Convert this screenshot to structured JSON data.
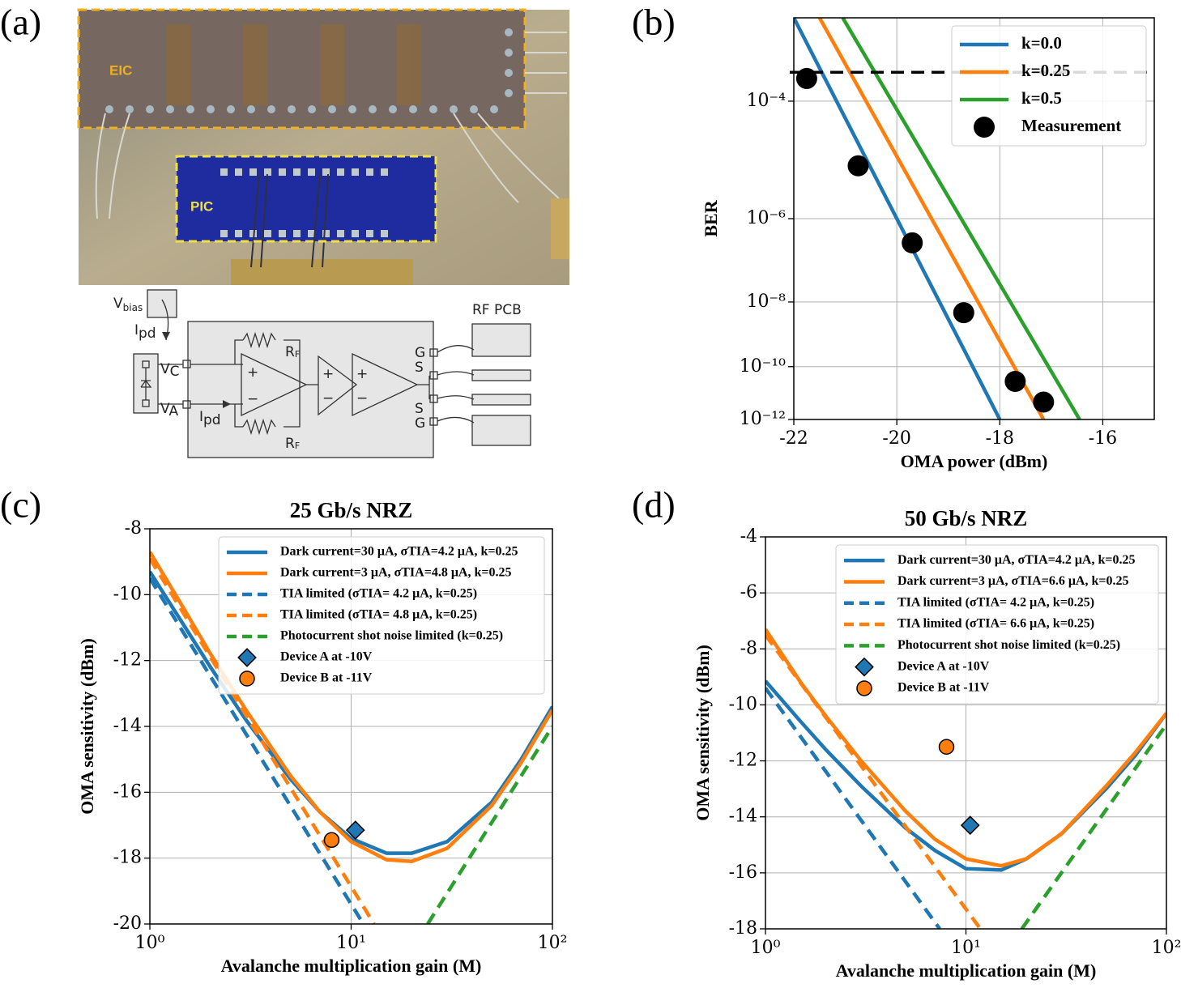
{
  "panel_a": {
    "label": "(a)",
    "photo": {
      "eic": "EIC",
      "pic": "PIC"
    },
    "schematic": {
      "v_bias": [
        "V",
        "bias"
      ],
      "i_pd_top": [
        "I",
        "pd"
      ],
      "v_c": [
        "V",
        "C"
      ],
      "v_a": [
        "V",
        "A"
      ],
      "i_pd_bottom": [
        "I",
        "pd"
      ],
      "r_f_top": [
        "R",
        "F"
      ],
      "r_f_bottom": [
        "R",
        "F"
      ],
      "amp_signs": [
        "+",
        "−"
      ],
      "pins": [
        "G",
        "S",
        "S",
        "G"
      ],
      "rf_pcb": "RF PCB"
    }
  },
  "chart_data": [
    {
      "type": "line",
      "panel_label": "(b)",
      "xlabel": "OMA power (dBm)",
      "ylabel": "BER",
      "xlim": [
        -22,
        -15
      ],
      "xticks": [
        -22,
        -20,
        -18,
        -16
      ],
      "ylim": [
        1e-12,
        0.001
      ],
      "yscale": "double-log",
      "yticks": [
        {
          "value": 1e-12,
          "label": "10⁻¹²"
        },
        {
          "value": 1e-10,
          "label": "10⁻¹⁰"
        },
        {
          "value": 1e-08,
          "label": "10⁻⁸"
        },
        {
          "value": 1e-06,
          "label": "10⁻⁶"
        },
        {
          "value": 0.0001,
          "label": "10⁻⁴"
        }
      ],
      "grid": true,
      "legend": "upper right",
      "hline": 0.00024,
      "series": [
        {
          "name": "k=0.0",
          "color": "#1f77b4",
          "style": "solid",
          "x": [
            -22,
            -18
          ],
          "values": [
            0.001,
            1e-12
          ]
        },
        {
          "name": "k=0.25",
          "color": "#ff7f0e",
          "style": "solid",
          "x": [
            -21.5,
            -17.15
          ],
          "values": [
            0.001,
            1e-12
          ]
        },
        {
          "name": "k=0.5",
          "color": "#2ca02c",
          "style": "solid",
          "x": [
            -21.05,
            -16.45
          ],
          "values": [
            0.001,
            1e-12
          ]
        },
        {
          "name": "Measurement",
          "color": "#000000",
          "style": "marker",
          "marker": "circle",
          "x": [
            -21.75,
            -20.75,
            -19.7,
            -18.7,
            -17.7,
            -17.15
          ],
          "values": [
            0.0002,
            1e-05,
            3e-07,
            5e-09,
            3e-11,
            5e-12
          ]
        }
      ]
    },
    {
      "type": "line",
      "panel_label": "(c)",
      "title": "25 Gb/s NRZ",
      "xlabel": "Avalanche multiplication gain (M)",
      "ylabel": "OMA sensitivity (dBm)",
      "xscale": "log",
      "xlim": [
        1,
        100
      ],
      "xticks": [
        {
          "value": 1,
          "label": "10⁰"
        },
        {
          "value": 10,
          "label": "10¹"
        },
        {
          "value": 100,
          "label": "10²"
        }
      ],
      "ylim": [
        -20,
        -8
      ],
      "yticks": [
        -20,
        -18,
        -16,
        -14,
        -12,
        -10,
        -8
      ],
      "grid": true,
      "legend": "upper right",
      "series": [
        {
          "name": "Dark current=30 μA, σTIA=4.2 μA, k=0.25",
          "color": "#1f77b4",
          "style": "solid",
          "x": [
            1,
            1.5,
            2,
            3,
            5,
            7,
            10,
            15,
            20,
            30,
            50,
            70,
            100
          ],
          "values": [
            -9.3,
            -11.0,
            -12.2,
            -13.8,
            -15.6,
            -16.6,
            -17.4,
            -17.85,
            -17.85,
            -17.5,
            -16.3,
            -15.0,
            -13.4
          ]
        },
        {
          "name": "Dark current=3 μA, σTIA=4.8 μA, k=0.25",
          "color": "#ff7f0e",
          "style": "solid",
          "x": [
            1,
            1.5,
            2,
            3,
            5,
            7,
            10,
            15,
            20,
            30,
            50,
            70,
            100
          ],
          "values": [
            -8.7,
            -10.5,
            -11.8,
            -13.5,
            -15.5,
            -16.6,
            -17.5,
            -18.05,
            -18.1,
            -17.7,
            -16.4,
            -15.1,
            -13.5
          ]
        },
        {
          "name": "TIA limited (σTIA= 4.2 μA, k=0.25)",
          "color": "#1f77b4",
          "style": "dashed",
          "x": [
            1,
            11.5
          ],
          "values": [
            -9.5,
            -20
          ]
        },
        {
          "name": "TIA limited (σTIA= 4.8 μA, k=0.25)",
          "color": "#ff7f0e",
          "style": "dashed",
          "x": [
            1,
            13
          ],
          "values": [
            -8.9,
            -20
          ]
        },
        {
          "name": "Photocurrent shot noise limited (k=0.25)",
          "color": "#2ca02c",
          "style": "dashed",
          "x": [
            24,
            100
          ],
          "values": [
            -20,
            -14
          ]
        },
        {
          "name": "Device A at -10V",
          "color": "#1f77b4",
          "style": "marker",
          "marker": "diamond",
          "x": [
            10.5
          ],
          "values": [
            -17.15
          ]
        },
        {
          "name": "Device B at -11V",
          "color": "#ff7f0e",
          "style": "marker",
          "marker": "circle",
          "x": [
            8
          ],
          "values": [
            -17.45
          ]
        }
      ]
    },
    {
      "type": "line",
      "panel_label": "(d)",
      "title": "50 Gb/s NRZ",
      "xlabel": "Avalanche multiplication gain (M)",
      "ylabel": "OMA sensitivity (dBm)",
      "xscale": "log",
      "xlim": [
        1,
        100
      ],
      "xticks": [
        {
          "value": 1,
          "label": "10⁰"
        },
        {
          "value": 10,
          "label": "10¹"
        },
        {
          "value": 100,
          "label": "10²"
        }
      ],
      "ylim": [
        -18,
        -4
      ],
      "yticks": [
        -18,
        -16,
        -14,
        -12,
        -10,
        -8,
        -6,
        -4
      ],
      "grid": true,
      "legend": "upper right",
      "series": [
        {
          "name": "Dark current=30 μA, σTIA=4.2 μA, k=0.25",
          "color": "#1f77b4",
          "style": "solid",
          "x": [
            1,
            1.5,
            2,
            3,
            5,
            7,
            10,
            15,
            20,
            30,
            50,
            70,
            100
          ],
          "values": [
            -9.15,
            -10.6,
            -11.6,
            -12.9,
            -14.4,
            -15.2,
            -15.85,
            -15.9,
            -15.5,
            -14.6,
            -13.0,
            -11.8,
            -10.3
          ]
        },
        {
          "name": "Dark current=3 μA, σTIA=6.6 μA, k=0.25",
          "color": "#ff7f0e",
          "style": "solid",
          "x": [
            1,
            1.5,
            2,
            3,
            5,
            7,
            10,
            15,
            20,
            30,
            50,
            70,
            100
          ],
          "values": [
            -7.3,
            -9.2,
            -10.4,
            -12.0,
            -13.8,
            -14.8,
            -15.5,
            -15.75,
            -15.5,
            -14.6,
            -12.9,
            -11.7,
            -10.3
          ]
        },
        {
          "name": "TIA limited (σTIA= 4.2 μA, k=0.25)",
          "color": "#1f77b4",
          "style": "dashed",
          "x": [
            1,
            7.4
          ],
          "values": [
            -9.4,
            -18
          ]
        },
        {
          "name": "TIA limited (σTIA= 6.6 μA, k=0.25)",
          "color": "#ff7f0e",
          "style": "dashed",
          "x": [
            1,
            11.8
          ],
          "values": [
            -7.5,
            -18
          ]
        },
        {
          "name": "Photocurrent shot noise limited (k=0.25)",
          "color": "#2ca02c",
          "style": "dashed",
          "x": [
            19,
            100
          ],
          "values": [
            -18,
            -10.7
          ]
        },
        {
          "name": "Device A at -10V",
          "color": "#1f77b4",
          "style": "marker",
          "marker": "diamond",
          "x": [
            10.5
          ],
          "values": [
            -14.3
          ]
        },
        {
          "name": "Device B at -11V",
          "color": "#ff7f0e",
          "style": "marker",
          "marker": "circle",
          "x": [
            8
          ],
          "values": [
            -11.5
          ]
        }
      ]
    }
  ]
}
